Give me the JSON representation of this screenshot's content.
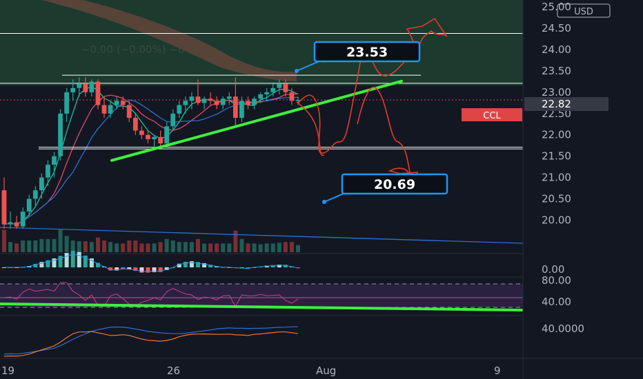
{
  "chart_data": {
    "type": "candlestick",
    "symbol": "CCL",
    "currency": "USD",
    "current_price": "22.82",
    "indicator_readout": "−0.00 (−0.00%) −0",
    "price_axis_ticks": [
      "25.00",
      "24.50",
      "24.00",
      "23.50",
      "23.00",
      "22.50",
      "22.00",
      "21.50",
      "21.00",
      "20.50",
      "20.00"
    ],
    "price_axis_range": [
      19.7,
      25.1
    ],
    "time_axis_labels": [
      "19",
      "26",
      "Aug",
      "9"
    ],
    "indicator_ticks": {
      "macd": [
        "0.00"
      ],
      "rsi": [
        "80.00",
        "40.00"
      ],
      "osc": [
        "40.0000"
      ]
    },
    "candles": [
      {
        "o": 20.7,
        "h": 21.0,
        "l": 19.8,
        "c": 19.9
      },
      {
        "o": 19.9,
        "h": 20.2,
        "l": 19.8,
        "c": 19.95
      },
      {
        "o": 19.95,
        "h": 20.1,
        "l": 19.8,
        "c": 19.85
      },
      {
        "o": 19.85,
        "h": 20.3,
        "l": 19.8,
        "c": 20.2
      },
      {
        "o": 20.2,
        "h": 20.6,
        "l": 20.1,
        "c": 20.5
      },
      {
        "o": 20.5,
        "h": 20.8,
        "l": 20.3,
        "c": 20.7
      },
      {
        "o": 20.7,
        "h": 21.1,
        "l": 20.5,
        "c": 21.0
      },
      {
        "o": 21.0,
        "h": 21.4,
        "l": 20.8,
        "c": 21.3
      },
      {
        "o": 21.3,
        "h": 21.6,
        "l": 21.0,
        "c": 21.5
      },
      {
        "o": 21.5,
        "h": 22.6,
        "l": 21.4,
        "c": 22.5
      },
      {
        "o": 22.5,
        "h": 23.1,
        "l": 22.3,
        "c": 23.0
      },
      {
        "o": 23.0,
        "h": 23.3,
        "l": 22.8,
        "c": 23.1
      },
      {
        "o": 23.1,
        "h": 23.35,
        "l": 22.9,
        "c": 23.2
      },
      {
        "o": 23.2,
        "h": 23.35,
        "l": 22.9,
        "c": 23.0
      },
      {
        "o": 23.0,
        "h": 23.3,
        "l": 22.9,
        "c": 23.25
      },
      {
        "o": 23.25,
        "h": 23.3,
        "l": 22.6,
        "c": 22.7
      },
      {
        "o": 22.7,
        "h": 22.9,
        "l": 22.4,
        "c": 22.5
      },
      {
        "o": 22.5,
        "h": 22.8,
        "l": 22.4,
        "c": 22.7
      },
      {
        "o": 22.7,
        "h": 22.9,
        "l": 22.6,
        "c": 22.8
      },
      {
        "o": 22.8,
        "h": 22.9,
        "l": 22.6,
        "c": 22.7
      },
      {
        "o": 22.7,
        "h": 22.8,
        "l": 22.3,
        "c": 22.4
      },
      {
        "o": 22.4,
        "h": 22.5,
        "l": 22.0,
        "c": 22.1
      },
      {
        "o": 22.1,
        "h": 22.2,
        "l": 21.9,
        "c": 22.0
      },
      {
        "o": 22.0,
        "h": 22.1,
        "l": 21.8,
        "c": 21.9
      },
      {
        "o": 21.9,
        "h": 22.0,
        "l": 21.7,
        "c": 21.95
      },
      {
        "o": 21.95,
        "h": 22.1,
        "l": 21.7,
        "c": 21.8
      },
      {
        "o": 21.8,
        "h": 22.3,
        "l": 21.7,
        "c": 22.2
      },
      {
        "o": 22.2,
        "h": 22.6,
        "l": 22.1,
        "c": 22.5
      },
      {
        "o": 22.5,
        "h": 22.8,
        "l": 22.4,
        "c": 22.7
      },
      {
        "o": 22.7,
        "h": 22.9,
        "l": 22.5,
        "c": 22.8
      },
      {
        "o": 22.8,
        "h": 23.0,
        "l": 22.6,
        "c": 22.9
      },
      {
        "o": 22.9,
        "h": 23.3,
        "l": 22.7,
        "c": 22.75
      },
      {
        "o": 22.75,
        "h": 22.9,
        "l": 22.6,
        "c": 22.85
      },
      {
        "o": 22.85,
        "h": 23.0,
        "l": 22.7,
        "c": 22.8
      },
      {
        "o": 22.8,
        "h": 22.9,
        "l": 22.6,
        "c": 22.7
      },
      {
        "o": 22.7,
        "h": 22.9,
        "l": 22.6,
        "c": 22.85
      },
      {
        "o": 22.85,
        "h": 23.0,
        "l": 22.7,
        "c": 22.9
      },
      {
        "o": 22.9,
        "h": 23.35,
        "l": 22.2,
        "c": 22.4
      },
      {
        "o": 22.4,
        "h": 22.9,
        "l": 22.3,
        "c": 22.8
      },
      {
        "o": 22.8,
        "h": 22.9,
        "l": 22.6,
        "c": 22.7
      },
      {
        "o": 22.7,
        "h": 22.9,
        "l": 22.6,
        "c": 22.85
      },
      {
        "o": 22.85,
        "h": 23.0,
        "l": 22.75,
        "c": 22.95
      },
      {
        "o": 22.95,
        "h": 23.1,
        "l": 22.8,
        "c": 23.0
      },
      {
        "o": 23.0,
        "h": 23.2,
        "l": 22.9,
        "c": 23.1
      },
      {
        "o": 23.1,
        "h": 23.3,
        "l": 22.95,
        "c": 23.2
      },
      {
        "o": 23.2,
        "h": 23.3,
        "l": 22.9,
        "c": 23.0
      },
      {
        "o": 23.0,
        "h": 23.1,
        "l": 22.7,
        "c": 22.8
      },
      {
        "o": 22.8,
        "h": 22.9,
        "l": 22.7,
        "c": 22.82
      }
    ],
    "horizontal_levels": [
      24.38,
      23.4,
      23.21,
      21.67,
      21.71
    ],
    "trendline": {
      "from": {
        "bar": 14,
        "price": 21.4
      },
      "to": {
        "bar": 78,
        "price": 23.26
      }
    },
    "callouts": [
      {
        "label": "23.53",
        "anchor_price": 23.53
      },
      {
        "label": "20.69",
        "anchor_price": 20.69
      }
    ]
  }
}
